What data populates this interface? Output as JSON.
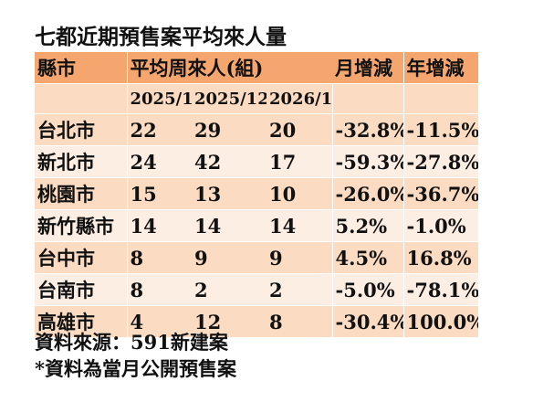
{
  "title": "七都近期預售案平均來人量",
  "table": {
    "headers": {
      "city": "縣市",
      "avg": "平均周來人(組)",
      "mom": "月增減",
      "yoy": "年增減"
    },
    "periods": [
      "2025/1",
      "2025/12",
      "2026/1"
    ],
    "rows": [
      {
        "city": "台北市",
        "v1": "22",
        "v2": "29",
        "v3": "20",
        "mom": "-32.8%",
        "yoy": "-11.5%"
      },
      {
        "city": "新北市",
        "v1": "24",
        "v2": "42",
        "v3": "17",
        "mom": "-59.3%",
        "yoy": "-27.8%"
      },
      {
        "city": "桃園市",
        "v1": "15",
        "v2": "13",
        "v3": "10",
        "mom": "-26.0%",
        "yoy": "-36.7%"
      },
      {
        "city": "新竹縣市",
        "v1": "14",
        "v2": "14",
        "v3": "14",
        "mom": "5.2%",
        "yoy": "-1.0%"
      },
      {
        "city": "台中市",
        "v1": "8",
        "v2": "9",
        "v3": "9",
        "mom": "4.5%",
        "yoy": "16.8%"
      },
      {
        "city": "台南市",
        "v1": "8",
        "v2": "2",
        "v3": "2",
        "mom": "-5.0%",
        "yoy": "-78.1%"
      },
      {
        "city": "高雄市",
        "v1": "4",
        "v2": "12",
        "v3": "8",
        "mom": "-30.4%",
        "yoy": "100.0%"
      }
    ]
  },
  "source": "資料來源：591新建案",
  "note": "*資料為當月公開預售案",
  "colors": {
    "header": "#f5a66e",
    "row_dark": "#fbdcc2",
    "row_light": "#fdeee3"
  }
}
